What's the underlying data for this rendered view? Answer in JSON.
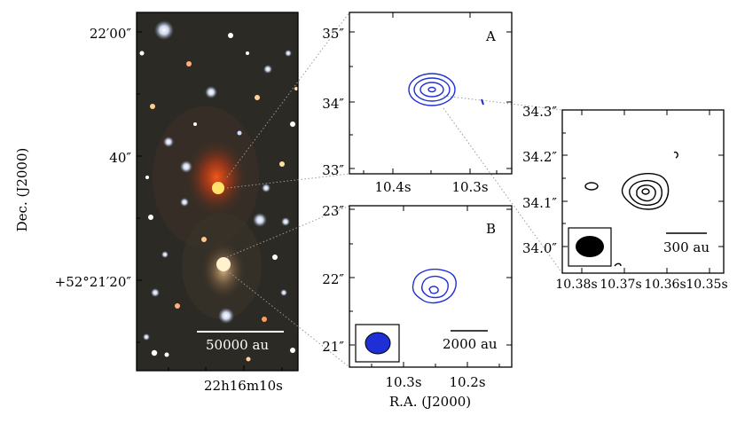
{
  "left_panel": {
    "dec_labels": [
      "22′00″",
      "40″",
      "+52°21′20″"
    ],
    "ra_label": "22h16m10s",
    "scalebar": "50000 au"
  },
  "panel_a": {
    "letter": "A",
    "dec_labels": [
      "35″",
      "34″",
      "33″"
    ],
    "ra_labels": [
      "10.4s",
      "10.3s"
    ]
  },
  "panel_b": {
    "letter": "B",
    "dec_labels": [
      "23″",
      "22″",
      "21″"
    ],
    "ra_labels": [
      "10.3s",
      "10.2s"
    ],
    "scalebar": "2000 au"
  },
  "panel_c": {
    "dec_labels": [
      "34.3″",
      "34.2″",
      "34.1″",
      "34.0″"
    ],
    "ra_labels": [
      "10.38s",
      "10.37s",
      "10.36s",
      "10.35s"
    ],
    "scalebar": "300 au"
  },
  "axes": {
    "dec_title": "Dec. (J2000)",
    "ra_title": "R.A. (J2000)"
  },
  "colors": {
    "contour_blue": "#1f2fd6",
    "contour_black": "#000000",
    "sky": "#2b2a24"
  }
}
